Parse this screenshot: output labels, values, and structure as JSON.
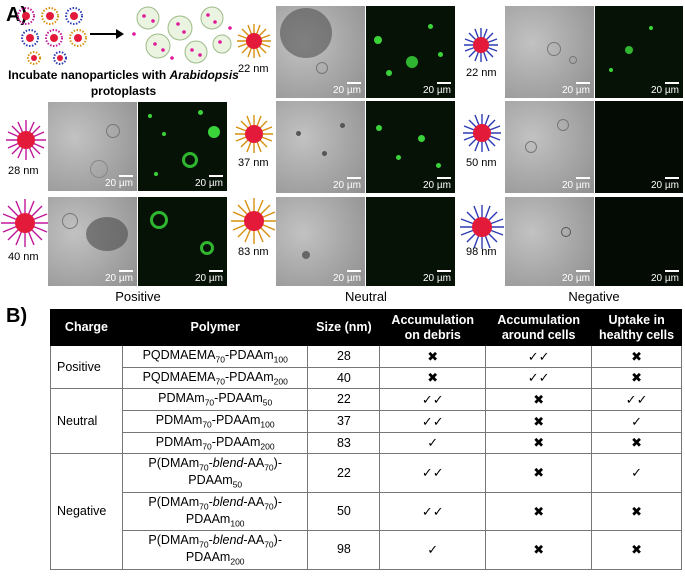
{
  "panel_a": {
    "label": "A)",
    "caption": "Incubate nanoparticles with Arabidopsis protoplasts",
    "scale_text": "20 µm",
    "groups": [
      {
        "label": "Positive",
        "sizes": [
          "28 nm",
          "40 nm"
        ]
      },
      {
        "label": "Neutral",
        "sizes": [
          "22 nm",
          "37 nm",
          "83 nm"
        ]
      },
      {
        "label": "Negative",
        "sizes": [
          "22 nm",
          "50 nm",
          "98 nm"
        ]
      }
    ],
    "colors": {
      "positive_corona": "#c0179a",
      "neutral_corona": "#d6900f",
      "negative_corona": "#2c3bb3",
      "core": "#e31a3a"
    }
  },
  "panel_b": {
    "label": "B)",
    "headers": [
      "Charge",
      "Polymer",
      "Size (nm)",
      "Accumulation on debris",
      "Accumulation around cells",
      "Uptake in healthy cells"
    ],
    "rows": [
      {
        "charge": "Positive",
        "polymer_html": "PQDMAEMA<sub>70</sub>-PDAAm<sub>100</sub>",
        "size": "28",
        "debris": "✖",
        "around": "✓✓",
        "uptake": "✖"
      },
      {
        "charge": "",
        "polymer_html": "PQDMAEMA<sub>70</sub>-PDAAm<sub>200</sub>",
        "size": "40",
        "debris": "✖",
        "around": "✓✓",
        "uptake": "✖"
      },
      {
        "charge": "Neutral",
        "polymer_html": "PDMAm<sub>70</sub>-PDAAm<sub>50</sub>",
        "size": "22",
        "debris": "✓✓",
        "around": "✖",
        "uptake": "✓✓"
      },
      {
        "charge": "",
        "polymer_html": "PDMAm<sub>70</sub>-PDAAm<sub>100</sub>",
        "size": "37",
        "debris": "✓✓",
        "around": "✖",
        "uptake": "✓"
      },
      {
        "charge": "",
        "polymer_html": "PDMAm<sub>70</sub>-PDAAm<sub>200</sub>",
        "size": "83",
        "debris": "✓",
        "around": "✖",
        "uptake": "✖"
      },
      {
        "charge": "Negative",
        "polymer_html": "P(DMAm<sub>70</sub>-<i>blend</i>-AA<sub>70</sub>)-<br>PDAAm<sub>50</sub>",
        "size": "22",
        "debris": "✓✓",
        "around": "✖",
        "uptake": "✓"
      },
      {
        "charge": "",
        "polymer_html": "P(DMAm<sub>70</sub>-<i>blend</i>-AA<sub>70</sub>)-<br>PDAAm<sub>100</sub>",
        "size": "50",
        "debris": "✓✓",
        "around": "✖",
        "uptake": "✖"
      },
      {
        "charge": "",
        "polymer_html": "P(DMAm<sub>70</sub>-<i>blend</i>-AA<sub>70</sub>)-<br>PDAAm<sub>200</sub>",
        "size": "98",
        "debris": "✓",
        "around": "✖",
        "uptake": "✖"
      }
    ]
  }
}
